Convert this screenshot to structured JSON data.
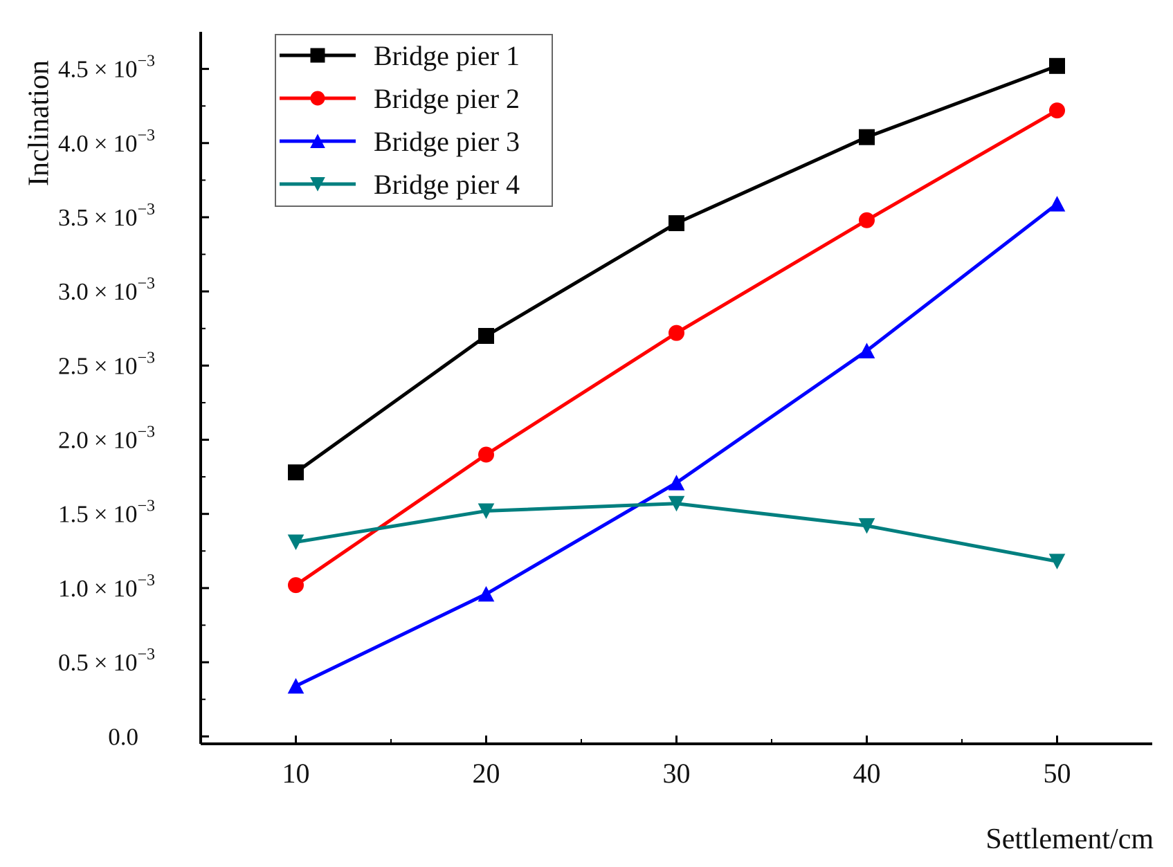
{
  "chart_data": {
    "type": "line",
    "title": "",
    "xlabel": "Settlement/cm",
    "ylabel": "Inclination",
    "x": [
      10,
      20,
      30,
      40,
      50
    ],
    "xlim": [
      5,
      55
    ],
    "ylim": [
      -5e-05,
      0.00475
    ],
    "xticks": [
      {
        "value": 10,
        "label": "10"
      },
      {
        "value": 20,
        "label": "20"
      },
      {
        "value": 30,
        "label": "30"
      },
      {
        "value": 40,
        "label": "40"
      },
      {
        "value": 50,
        "label": "50"
      }
    ],
    "yticks": [
      {
        "value": 0,
        "base": "0.0",
        "times": "",
        "pow": ""
      },
      {
        "value": 0.0005,
        "base": "0.5",
        "times": "×",
        "pow": "−3",
        "exponent_base": "10"
      },
      {
        "value": 0.001,
        "base": "1.0",
        "times": "×",
        "pow": "−3",
        "exponent_base": "10"
      },
      {
        "value": 0.0015,
        "base": "1.5",
        "times": "×",
        "pow": "−3",
        "exponent_base": "10"
      },
      {
        "value": 0.002,
        "base": "2.0",
        "times": "×",
        "pow": "−3",
        "exponent_base": "10"
      },
      {
        "value": 0.0025,
        "base": "2.5",
        "times": "×",
        "pow": "−3",
        "exponent_base": "10"
      },
      {
        "value": 0.003,
        "base": "3.0",
        "times": "×",
        "pow": "−3",
        "exponent_base": "10"
      },
      {
        "value": 0.0035,
        "base": "3.5",
        "times": "×",
        "pow": "−3",
        "exponent_base": "10"
      },
      {
        "value": 0.004,
        "base": "4.0",
        "times": "×",
        "pow": "−3",
        "exponent_base": "10"
      },
      {
        "value": 0.0045,
        "base": "4.5",
        "times": "×",
        "pow": "−3",
        "exponent_base": "10"
      }
    ],
    "legend": {
      "placement": "top-left",
      "entries": [
        "Bridge pier 1",
        "Bridge pier 2",
        "Bridge pier 3",
        "Bridge pier 4"
      ]
    },
    "series": [
      {
        "name": "Bridge pier 1",
        "color": "#000000",
        "marker": "square",
        "values": [
          0.00178,
          0.0027,
          0.00346,
          0.00404,
          0.00452
        ]
      },
      {
        "name": "Bridge pier 2",
        "color": "#ff0000",
        "marker": "circle",
        "values": [
          0.00102,
          0.0019,
          0.00272,
          0.00348,
          0.00422
        ]
      },
      {
        "name": "Bridge pier 3",
        "color": "#0000ff",
        "marker": "triangle-up",
        "values": [
          0.00034,
          0.00096,
          0.00171,
          0.0026,
          0.00359
        ]
      },
      {
        "name": "Bridge pier 4",
        "color": "#007f7f",
        "marker": "triangle-down",
        "values": [
          0.00131,
          0.00152,
          0.00157,
          0.00142,
          0.00118
        ]
      }
    ],
    "grid": false
  }
}
